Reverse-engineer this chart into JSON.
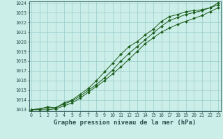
{
  "title": "Graphe pression niveau de la mer (hPa)",
  "bg_color": "#cceee8",
  "grid_color": "#99cccc",
  "line_color": "#1a5c1a",
  "marker_color": "#1a5c1a",
  "x_values": [
    0,
    1,
    2,
    3,
    4,
    5,
    6,
    7,
    8,
    9,
    10,
    11,
    12,
    13,
    14,
    15,
    16,
    17,
    18,
    19,
    20,
    21,
    22,
    23
  ],
  "line1": [
    1013.0,
    1013.0,
    1013.0,
    1013.1,
    1013.4,
    1013.7,
    1014.2,
    1014.8,
    1015.4,
    1016.0,
    1016.7,
    1017.4,
    1018.2,
    1019.0,
    1019.8,
    1020.4,
    1021.0,
    1021.4,
    1021.8,
    1022.1,
    1022.4,
    1022.7,
    1023.1,
    1023.5
  ],
  "line2": [
    1013.0,
    1013.1,
    1013.2,
    1013.2,
    1013.6,
    1013.9,
    1014.4,
    1015.0,
    1015.6,
    1016.3,
    1017.1,
    1018.0,
    1018.8,
    1019.5,
    1020.2,
    1020.9,
    1021.6,
    1022.2,
    1022.5,
    1022.8,
    1023.0,
    1023.2,
    1023.5,
    1023.8
  ],
  "line3": [
    1013.0,
    1013.1,
    1013.3,
    1013.2,
    1013.7,
    1014.0,
    1014.6,
    1015.2,
    1016.0,
    1016.9,
    1017.8,
    1018.7,
    1019.5,
    1020.0,
    1020.7,
    1021.3,
    1022.1,
    1022.6,
    1022.8,
    1023.1,
    1023.2,
    1023.3,
    1023.5,
    1024.0
  ],
  "ylim_min": 1013,
  "ylim_max": 1024,
  "xlim_min": 0,
  "xlim_max": 23,
  "yticks": [
    1013,
    1014,
    1015,
    1016,
    1017,
    1018,
    1019,
    1020,
    1021,
    1022,
    1023,
    1024
  ],
  "xticks": [
    0,
    1,
    2,
    3,
    4,
    5,
    6,
    7,
    8,
    9,
    10,
    11,
    12,
    13,
    14,
    15,
    16,
    17,
    18,
    19,
    20,
    21,
    22,
    23
  ],
  "tick_color": "#2a5050",
  "spine_color": "#2a5050",
  "title_fontsize": 6.5,
  "tick_fontsize": 4.8
}
